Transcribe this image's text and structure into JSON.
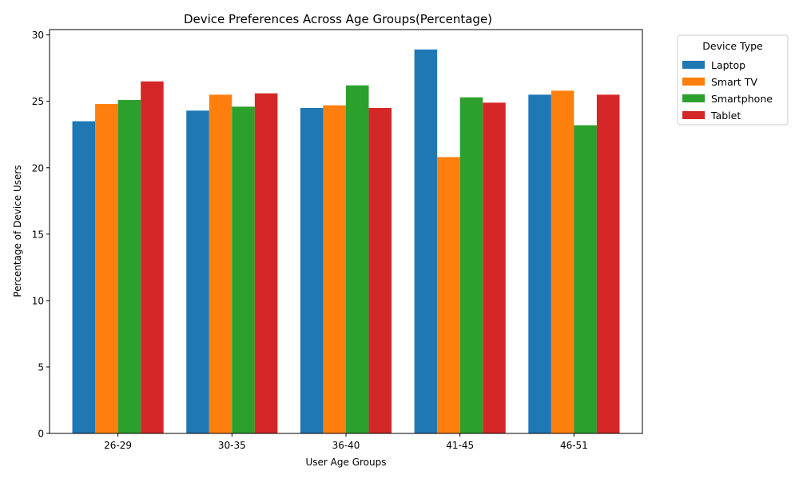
{
  "chart_data": {
    "type": "bar",
    "title": "Device Preferences Across Age Groups(Percentage)",
    "xlabel": "User Age Groups",
    "ylabel": "Percentage of Device Users",
    "categories": [
      "26-29",
      "30-35",
      "36-40",
      "41-45",
      "46-51"
    ],
    "ylim": [
      0,
      30.4
    ],
    "yticks": [
      0,
      5,
      10,
      15,
      20,
      25,
      30
    ],
    "grid": false,
    "legend": {
      "title": "Device Type",
      "placement": "outside-top-right"
    },
    "series": [
      {
        "name": "Laptop",
        "color": "#1f77b4",
        "values": [
          23.5,
          24.3,
          24.5,
          28.9,
          25.5
        ]
      },
      {
        "name": "Smart TV",
        "color": "#ff7f0e",
        "values": [
          24.8,
          25.5,
          24.7,
          20.8,
          25.8
        ]
      },
      {
        "name": "Smartphone",
        "color": "#2ca02c",
        "values": [
          25.1,
          24.6,
          26.2,
          25.3,
          23.2
        ]
      },
      {
        "name": "Tablet",
        "color": "#d62728",
        "values": [
          26.5,
          25.6,
          24.5,
          24.9,
          25.5
        ]
      }
    ]
  }
}
